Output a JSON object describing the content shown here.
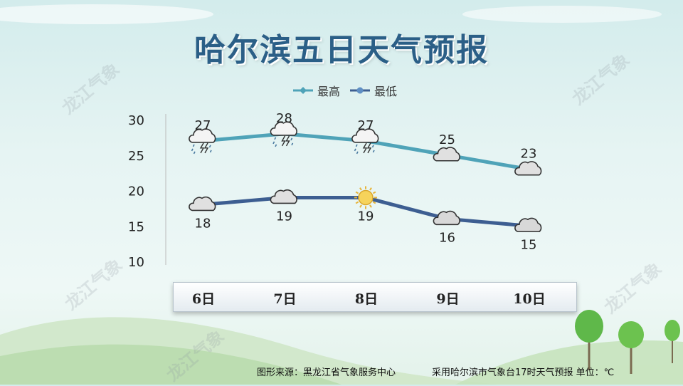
{
  "title": "哈尔滨五日天气预报",
  "watermark": "龙江气象",
  "legend": [
    {
      "label": "最高",
      "color": "#4fa3b8"
    },
    {
      "label": "最低",
      "color": "#3d5e91"
    }
  ],
  "chart_data": {
    "type": "line",
    "title": "哈尔滨五日天气预报",
    "categories": [
      "6日",
      "7日",
      "8日",
      "9日",
      "10日"
    ],
    "series": [
      {
        "name": "最高",
        "color": "#4fa3b8",
        "values": [
          27,
          28,
          27,
          25,
          23
        ],
        "icons": [
          "thunder-rain-icon",
          "thunder-rain-icon",
          "thunder-rain-icon",
          "cloud-icon",
          "cloud-icon"
        ]
      },
      {
        "name": "最低",
        "color": "#3d5e91",
        "values": [
          18,
          19,
          19,
          16,
          15
        ],
        "icons": [
          "cloud-icon",
          "cloud-icon",
          "sun-icon",
          "cloud-icon",
          "cloud-icon"
        ]
      }
    ],
    "yticks": [
      30,
      25,
      20,
      15,
      10
    ],
    "ylim": [
      10,
      30
    ],
    "grid": false,
    "legend_position": "top-center"
  },
  "footer": {
    "source": "图形来源：黑龙江省气象服务中心",
    "note": "采用哈尔滨市气象台17时天气预报 单位：℃"
  }
}
